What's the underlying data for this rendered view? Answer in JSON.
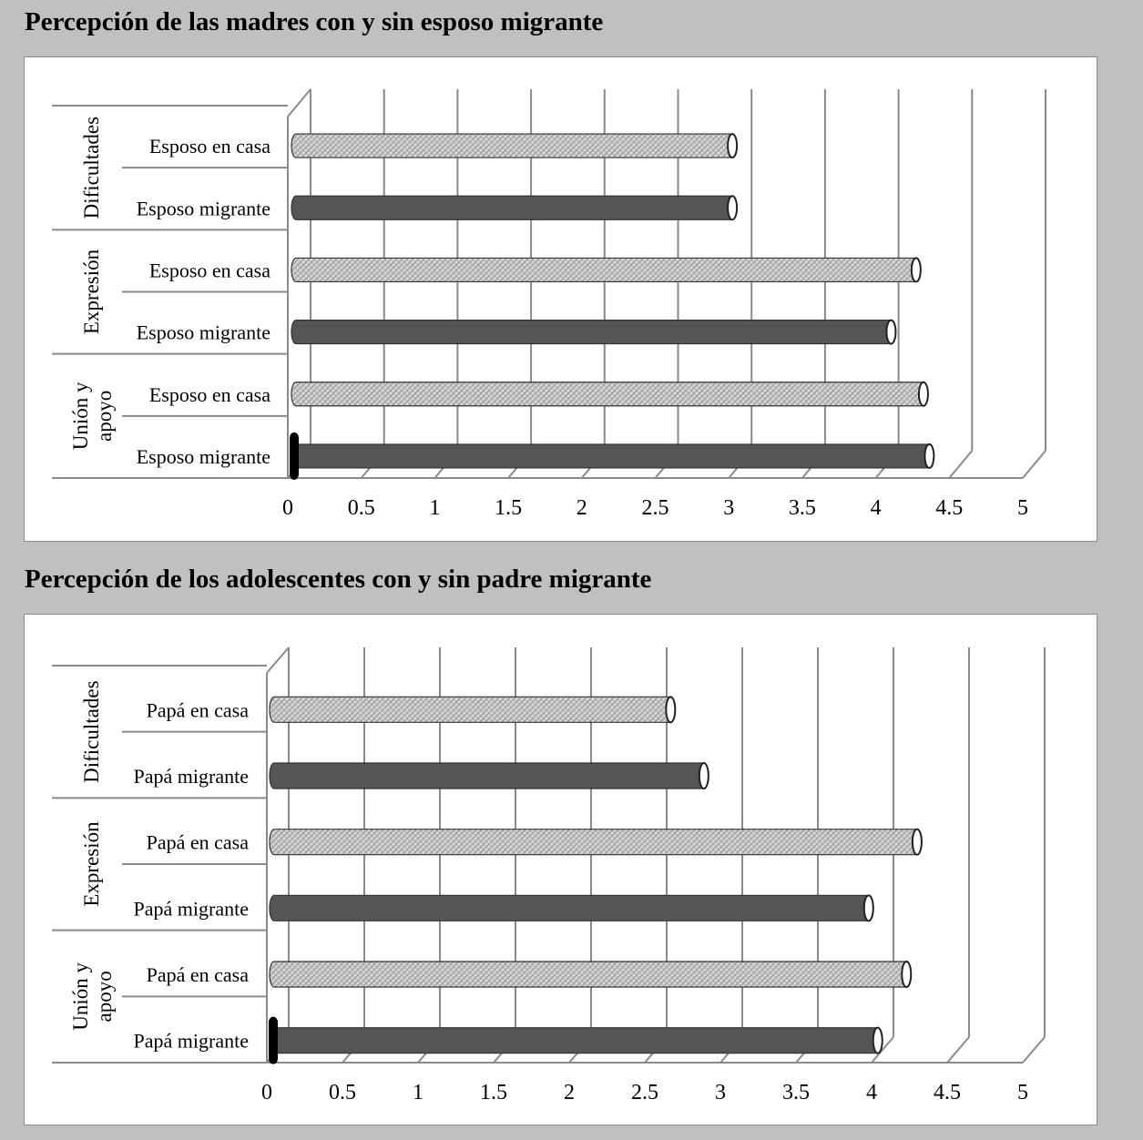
{
  "chart_data": [
    {
      "type": "bar",
      "title": "Percepción de las madres con y sin esposo migrante",
      "orientation": "horizontal",
      "groups": [
        "Dificultades",
        "Expresión",
        "Unión y apoyo"
      ],
      "categories": [
        {
          "group": "Dificultades",
          "label": "Esposo en casa",
          "value": 2.97,
          "style": "hatched"
        },
        {
          "group": "Dificultades",
          "label": "Esposo migrante",
          "value": 2.97,
          "style": "solid"
        },
        {
          "group": "Expresión",
          "label": "Esposo en casa",
          "value": 4.22,
          "style": "hatched"
        },
        {
          "group": "Expresión",
          "label": "Esposo migrante",
          "value": 4.05,
          "style": "solid"
        },
        {
          "group": "Unión y apoyo",
          "label": "Esposo en casa",
          "value": 4.27,
          "style": "hatched"
        },
        {
          "group": "Unión y apoyo",
          "label": "Esposo migrante",
          "value": 4.31,
          "style": "solid"
        }
      ],
      "xticks": [
        "0",
        "0.5",
        "1",
        "1.5",
        "2",
        "2.5",
        "3",
        "3.5",
        "4",
        "4.5",
        "5"
      ],
      "xlim": [
        0,
        5
      ],
      "grid": true
    },
    {
      "type": "bar",
      "title": "Percepción de los adolescentes con y sin padre migrante",
      "orientation": "horizontal",
      "groups": [
        "Dificultades",
        "Expresión",
        "Unión y apoyo"
      ],
      "categories": [
        {
          "group": "Dificultades",
          "label": "Papá en casa",
          "value": 2.62,
          "style": "hatched"
        },
        {
          "group": "Dificultades",
          "label": "Papá migrante",
          "value": 2.84,
          "style": "solid"
        },
        {
          "group": "Expresión",
          "label": "Papá en casa",
          "value": 4.25,
          "style": "hatched"
        },
        {
          "group": "Expresión",
          "label": "Papá migrante",
          "value": 3.93,
          "style": "solid"
        },
        {
          "group": "Unión y apoyo",
          "label": "Papá en casa",
          "value": 4.18,
          "style": "hatched"
        },
        {
          "group": "Unión y apoyo",
          "label": "Papá migrante",
          "value": 3.99,
          "style": "solid"
        }
      ],
      "xticks": [
        "0",
        "0.5",
        "1",
        "1.5",
        "2",
        "2.5",
        "3",
        "3.5",
        "4",
        "4.5",
        "5"
      ],
      "xlim": [
        0,
        5
      ],
      "grid": true
    }
  ],
  "colors": {
    "page_background": "#c0c0c0",
    "panel_background": "#ffffff",
    "solid_bar": "#555555",
    "hatched_bar": "#d6d6d6",
    "gridline": "#8a8a8a"
  }
}
